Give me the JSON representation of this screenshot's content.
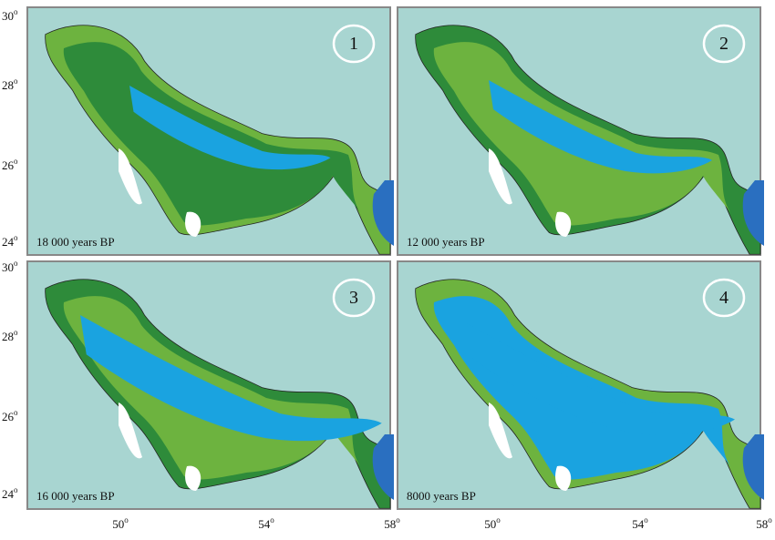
{
  "panels": [
    {
      "number": "1",
      "caption": "18 000 years BP"
    },
    {
      "number": "2",
      "caption": "12 000 years BP"
    },
    {
      "number": "3",
      "caption": "16 000 years BP"
    },
    {
      "number": "4",
      "caption": "8000 years BP"
    }
  ],
  "lat_labels": [
    {
      "number": "30",
      "degree": "o"
    },
    {
      "number": "28",
      "degree": "o"
    },
    {
      "number": "26",
      "degree": "o"
    },
    {
      "number": "24",
      "degree": "o"
    },
    {
      "number": "30",
      "degree": "o"
    },
    {
      "number": "28",
      "degree": "o"
    },
    {
      "number": "26",
      "degree": "o"
    },
    {
      "number": "24",
      "degree": "o"
    }
  ],
  "lon_labels": [
    {
      "number": "50",
      "degree": "o"
    },
    {
      "number": "54",
      "degree": "o"
    },
    {
      "number": "58",
      "degree": "o"
    },
    {
      "number": "50",
      "degree": "o"
    },
    {
      "number": "54",
      "degree": "o"
    },
    {
      "number": "58",
      "degree": "o"
    }
  ]
}
